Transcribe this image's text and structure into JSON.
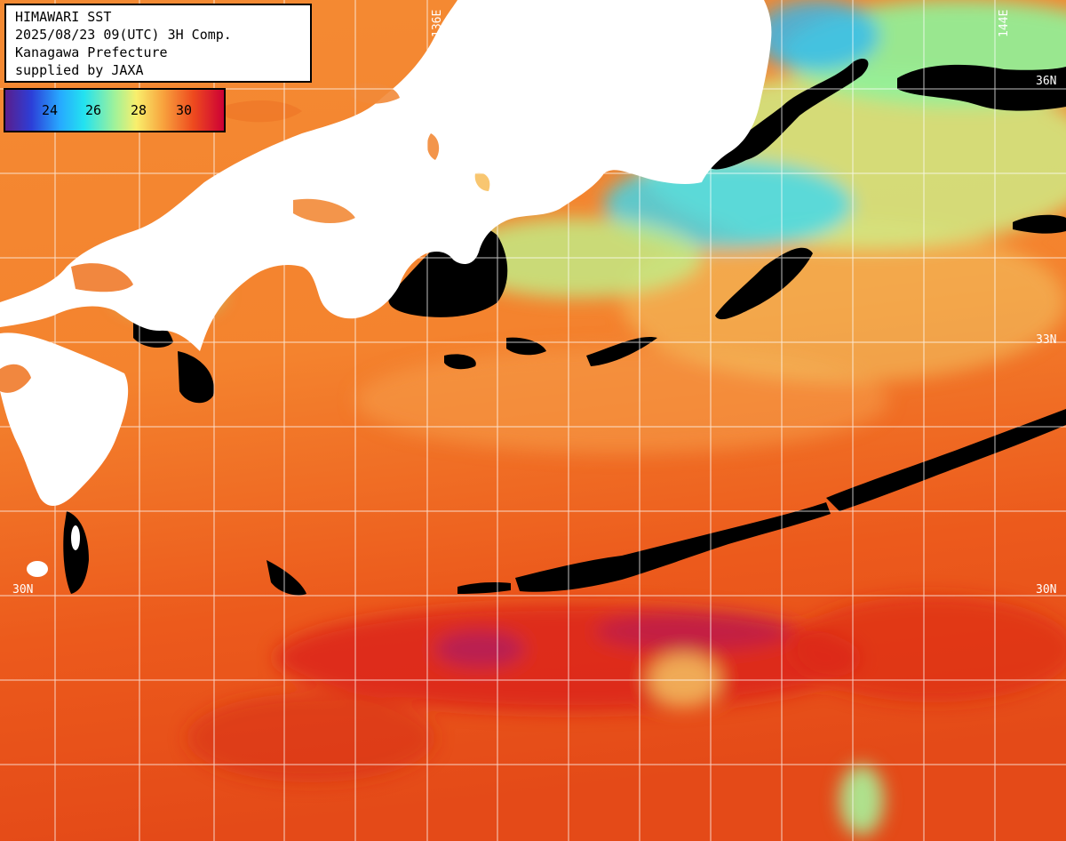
{
  "title_lines": [
    "HIMAWARI SST",
    "2025/08/23 09(UTC) 3H Comp.",
    "Kanagawa Prefecture",
    "supplied by JAXA"
  ],
  "legend": {
    "ticks": [
      "24",
      "26",
      "28",
      "30"
    ]
  },
  "grid_labels": {
    "lon_136": "136E",
    "lon_144": "144E",
    "lat_36": "36N",
    "lat_33_left": "33",
    "lat_33_right": "33N",
    "lat_30_left": "30N",
    "lat_30_right": "30N"
  },
  "colors": {
    "land": "#ffffff",
    "cloud": "#000000",
    "warm_sea": "#f07a2a",
    "hot_sea": "#dd2a12",
    "cool_sea": "#9ff29a",
    "cold_sea": "#27c9ee"
  }
}
